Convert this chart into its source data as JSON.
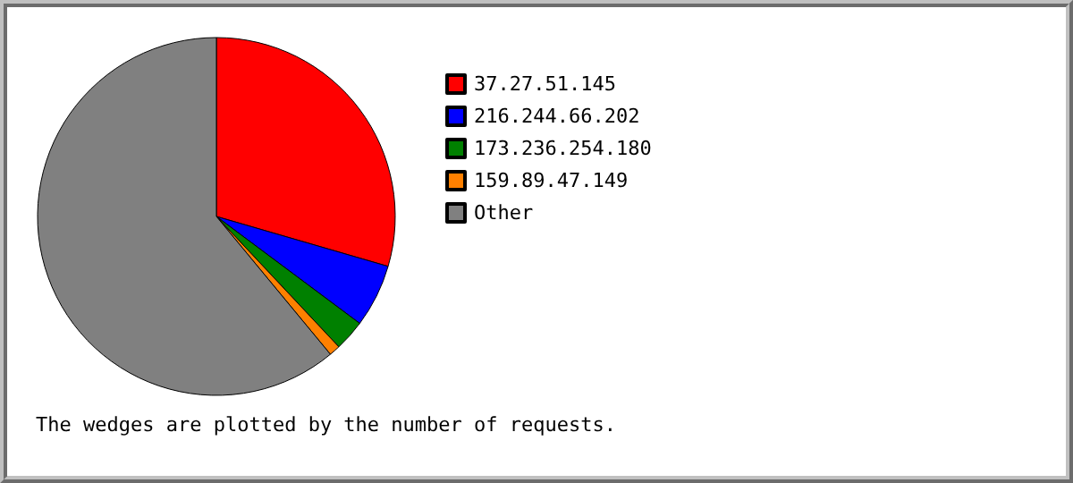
{
  "chart_data": {
    "type": "pie",
    "categories": [
      "37.27.51.145",
      "216.244.66.202",
      "173.236.254.180",
      "159.89.47.149",
      "Other"
    ],
    "values": [
      29.5,
      5.7,
      2.8,
      1.0,
      61.0
    ],
    "colors": [
      "#ff0000",
      "#0000ff",
      "#008000",
      "#ff8000",
      "#808080"
    ],
    "legend": "top right",
    "annotations": [
      "The wedges are plotted by the number of requests."
    ]
  }
}
